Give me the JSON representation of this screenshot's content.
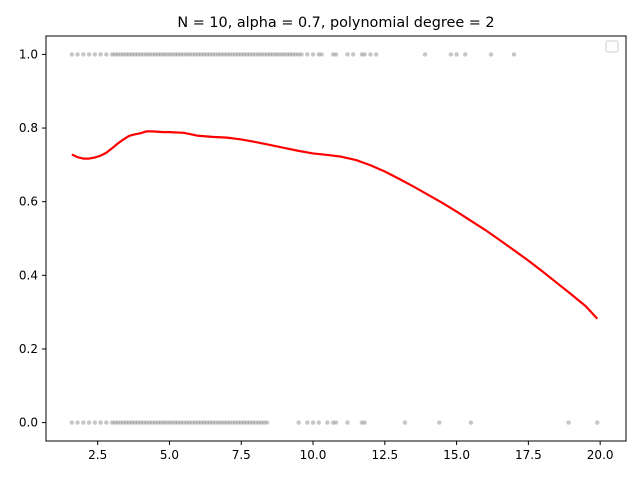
{
  "chart_data": {
    "type": "scatter",
    "title": "N = 10, alpha = 0.7, polynomial degree = 2",
    "xlabel": "",
    "ylabel": "",
    "xlim": [
      0.7,
      20.9
    ],
    "ylim": [
      -0.05,
      1.05
    ],
    "xticks": [
      2.5,
      5.0,
      7.5,
      10.0,
      12.5,
      15.0,
      17.5,
      20.0
    ],
    "xtick_labels": [
      "2.5",
      "5.0",
      "7.5",
      "10.0",
      "12.5",
      "15.0",
      "17.5",
      "20.0"
    ],
    "yticks": [
      0.0,
      0.2,
      0.4,
      0.6,
      0.8,
      1.0
    ],
    "ytick_labels": [
      "0.0",
      "0.2",
      "0.4",
      "0.6",
      "0.8",
      "1.0"
    ],
    "grid": false,
    "legend": "top-right (empty)",
    "series": [
      {
        "kind": "scatter",
        "color": "#808080",
        "x_y1": [
          1.6,
          1.8,
          2.0,
          2.2,
          2.4,
          2.6,
          2.8,
          3.0,
          3.1,
          3.2,
          3.3,
          3.4,
          3.5,
          3.6,
          3.7,
          3.8,
          3.9,
          4.0,
          4.1,
          4.2,
          4.3,
          4.4,
          4.5,
          4.6,
          4.7,
          4.8,
          4.9,
          5.0,
          5.1,
          5.2,
          5.3,
          5.4,
          5.5,
          5.6,
          5.7,
          5.8,
          5.9,
          6.0,
          6.1,
          6.2,
          6.3,
          6.4,
          6.5,
          6.6,
          6.7,
          6.8,
          6.9,
          7.0,
          7.1,
          7.2,
          7.3,
          7.4,
          7.5,
          7.6,
          7.7,
          7.8,
          7.9,
          8.0,
          8.1,
          8.2,
          8.3,
          8.4,
          8.5,
          8.6,
          8.7,
          8.8,
          8.9,
          9.0,
          9.1,
          9.2,
          9.3,
          9.4,
          9.5,
          9.6,
          9.8,
          10.0,
          10.2,
          10.3,
          10.7,
          10.8,
          11.2,
          11.4,
          11.7,
          11.8,
          12.0,
          12.2,
          13.9,
          14.8,
          15.0,
          15.3,
          16.2,
          17.0
        ],
        "x_y0": [
          1.6,
          1.8,
          2.0,
          2.2,
          2.4,
          2.6,
          2.8,
          3.0,
          3.1,
          3.2,
          3.3,
          3.4,
          3.5,
          3.6,
          3.7,
          3.8,
          3.9,
          4.0,
          4.1,
          4.2,
          4.3,
          4.4,
          4.5,
          4.6,
          4.7,
          4.8,
          4.9,
          5.0,
          5.1,
          5.2,
          5.3,
          5.4,
          5.5,
          5.6,
          5.7,
          5.8,
          5.9,
          6.0,
          6.1,
          6.2,
          6.3,
          6.4,
          6.5,
          6.6,
          6.7,
          6.8,
          6.9,
          7.0,
          7.1,
          7.2,
          7.3,
          7.4,
          7.5,
          7.6,
          7.7,
          7.8,
          7.9,
          8.0,
          8.1,
          8.2,
          8.3,
          8.4,
          9.5,
          9.8,
          10.0,
          10.2,
          10.5,
          10.7,
          10.8,
          11.2,
          11.7,
          11.8,
          13.2,
          14.4,
          15.5,
          18.9,
          19.9
        ]
      },
      {
        "kind": "line",
        "color": "#ff0000",
        "x": [
          1.6,
          1.8,
          2.0,
          2.2,
          2.4,
          2.6,
          2.8,
          3.0,
          3.2,
          3.4,
          3.6,
          3.8,
          4.0,
          4.2,
          4.4,
          4.6,
          4.8,
          5.0,
          5.5,
          6.0,
          6.5,
          7.0,
          7.5,
          8.0,
          8.5,
          9.0,
          9.5,
          10.0,
          10.5,
          11.0,
          11.5,
          12.0,
          12.5,
          13.0,
          13.5,
          14.0,
          14.5,
          15.0,
          15.5,
          16.0,
          16.5,
          17.0,
          17.5,
          18.0,
          18.5,
          19.0,
          19.5,
          19.9
        ],
        "y": [
          0.728,
          0.721,
          0.717,
          0.717,
          0.72,
          0.725,
          0.733,
          0.745,
          0.758,
          0.769,
          0.779,
          0.783,
          0.786,
          0.791,
          0.791,
          0.79,
          0.789,
          0.789,
          0.787,
          0.779,
          0.776,
          0.774,
          0.769,
          0.762,
          0.754,
          0.746,
          0.738,
          0.731,
          0.727,
          0.722,
          0.713,
          0.699,
          0.682,
          0.662,
          0.641,
          0.619,
          0.597,
          0.573,
          0.548,
          0.523,
          0.496,
          0.468,
          0.44,
          0.41,
          0.379,
          0.348,
          0.316,
          0.282
        ]
      }
    ]
  }
}
